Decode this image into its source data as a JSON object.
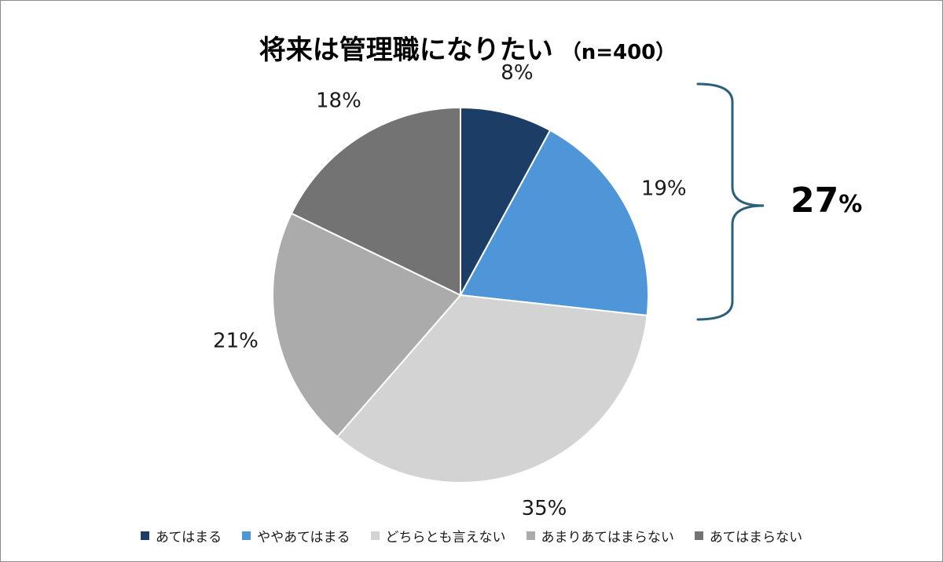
{
  "chart_data": {
    "type": "pie",
    "title": "将来は管理職になりたい",
    "subtitle": "（n=400）",
    "categories": [
      "あてはまる",
      "ややあてはまる",
      "どちらとも言えない",
      "あまりあてはまらない",
      "あてはまらない"
    ],
    "values": [
      8,
      19,
      35,
      21,
      18
    ],
    "value_labels": [
      "8%",
      "19%",
      "35%",
      "21%",
      "18%"
    ],
    "colors": [
      "#1b3d66",
      "#4f96d8",
      "#d3d3d3",
      "#ababab",
      "#737373"
    ],
    "legend_placement": "bottom",
    "annotation": {
      "value": "27",
      "unit": "%",
      "note_color": "#2b5f7a"
    }
  }
}
